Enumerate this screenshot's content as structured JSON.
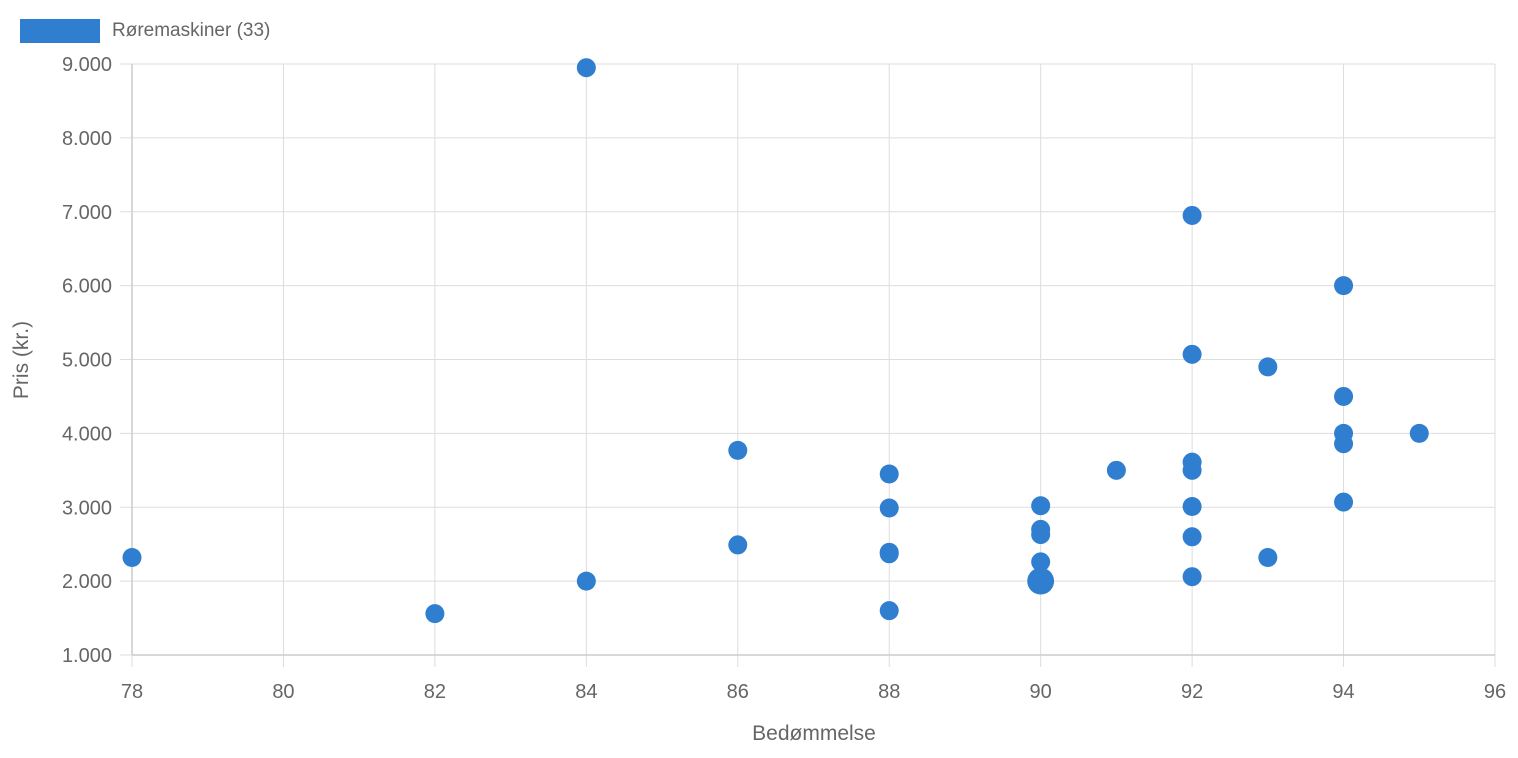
{
  "legend": {
    "label": "Røremaskiner (33)",
    "color": "#2f7ed0"
  },
  "chart_data": {
    "type": "scatter",
    "series": [
      {
        "name": "Røremaskiner (33)",
        "color": "#2f7ed0",
        "points": [
          {
            "x": 78,
            "y": 2320
          },
          {
            "x": 82,
            "y": 1560
          },
          {
            "x": 84,
            "y": 8950
          },
          {
            "x": 84,
            "y": 2000
          },
          {
            "x": 86,
            "y": 3770
          },
          {
            "x": 86,
            "y": 2490
          },
          {
            "x": 88,
            "y": 3450
          },
          {
            "x": 88,
            "y": 2990
          },
          {
            "x": 88,
            "y": 2390
          },
          {
            "x": 88,
            "y": 2370
          },
          {
            "x": 88,
            "y": 1600
          },
          {
            "x": 90,
            "y": 3020
          },
          {
            "x": 90,
            "y": 2700
          },
          {
            "x": 90,
            "y": 2630
          },
          {
            "x": 90,
            "y": 2260
          },
          {
            "x": 90,
            "y": 2000,
            "size": 2
          },
          {
            "x": 91,
            "y": 3500
          },
          {
            "x": 92,
            "y": 6950
          },
          {
            "x": 92,
            "y": 5070
          },
          {
            "x": 92,
            "y": 3610
          },
          {
            "x": 92,
            "y": 3500
          },
          {
            "x": 92,
            "y": 3010
          },
          {
            "x": 92,
            "y": 2600
          },
          {
            "x": 92,
            "y": 2060
          },
          {
            "x": 93,
            "y": 4900
          },
          {
            "x": 93,
            "y": 2320
          },
          {
            "x": 94,
            "y": 6000
          },
          {
            "x": 94,
            "y": 4500
          },
          {
            "x": 94,
            "y": 4000
          },
          {
            "x": 94,
            "y": 3860
          },
          {
            "x": 94,
            "y": 3070
          },
          {
            "x": 95,
            "y": 4000
          }
        ]
      }
    ],
    "xlabel": "Bedømmelse",
    "ylabel": "Pris (kr.)",
    "xlim": [
      78,
      96
    ],
    "ylim": [
      1000,
      9000
    ],
    "x_ticks": [
      "78",
      "80",
      "82",
      "84",
      "86",
      "88",
      "90",
      "92",
      "94",
      "96"
    ],
    "y_ticks": [
      "1.000",
      "2.000",
      "3.000",
      "4.000",
      "5.000",
      "6.000",
      "7.000",
      "8.000",
      "9.000"
    ],
    "grid": true,
    "legend_position": "top-left"
  }
}
